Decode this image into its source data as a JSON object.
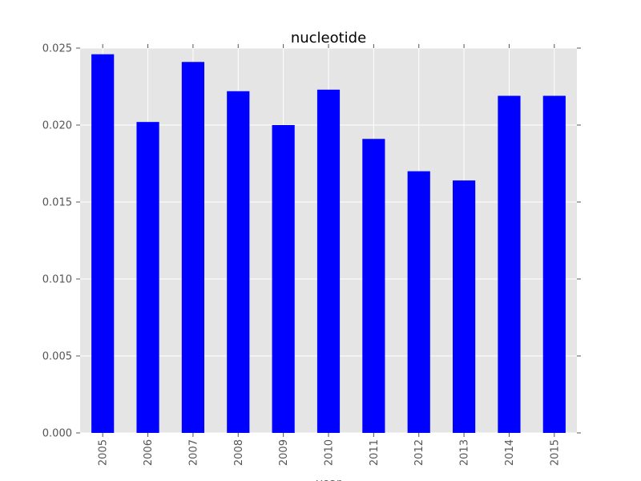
{
  "chart_data": {
    "type": "bar",
    "title": "nucleotide",
    "xlabel": "year",
    "ylabel": "",
    "categories": [
      "2005",
      "2006",
      "2007",
      "2008",
      "2009",
      "2010",
      "2011",
      "2012",
      "2013",
      "2014",
      "2015"
    ],
    "values": [
      0.0246,
      0.0202,
      0.0241,
      0.0222,
      0.02,
      0.0223,
      0.0191,
      0.017,
      0.0164,
      0.0219,
      0.0219
    ],
    "ylim": [
      0,
      0.025
    ],
    "yticks": [
      "0.000",
      "0.005",
      "0.010",
      "0.015",
      "0.020",
      "0.025"
    ],
    "grid": true,
    "colors": {
      "bar": "#0000ff",
      "plot_background": "#e5e5e5",
      "grid": "#ffffff"
    }
  }
}
